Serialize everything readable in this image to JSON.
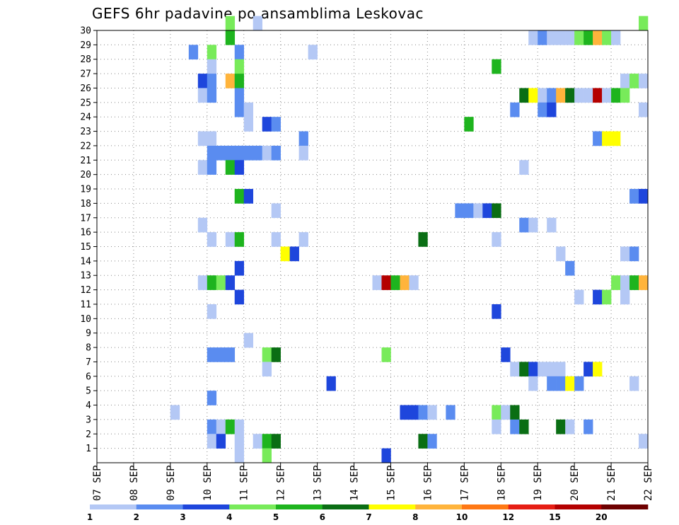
{
  "chart_data": {
    "type": "heatmap",
    "title": "GEFS 6hr padavine po ansamblima Leskovac",
    "xlabel": "",
    "ylabel": "",
    "x_categories": [
      "07 SEP",
      "08 SEP",
      "09 SEP",
      "10 SEP",
      "11 SEP",
      "12 SEP",
      "13 SEP",
      "14 SEP",
      "15 SEP",
      "16 SEP",
      "17 SEP",
      "18 SEP",
      "19 SEP",
      "20 SEP",
      "21 SEP",
      "22 SEP"
    ],
    "x_range_days": [
      0,
      15
    ],
    "steps_per_day": 4,
    "y_categories": [
      "1",
      "2",
      "3",
      "4",
      "5",
      "6",
      "7",
      "8",
      "9",
      "10",
      "11",
      "12",
      "13",
      "14",
      "15",
      "16",
      "17",
      "18",
      "19",
      "20",
      "21",
      "22",
      "23",
      "24",
      "25",
      "26",
      "27",
      "28",
      "29",
      "30"
    ],
    "y_range": [
      0,
      30
    ],
    "grid": true,
    "legend": {
      "position": "bottom",
      "levels": [
        "1",
        "2",
        "3",
        "4",
        "5",
        "6",
        "7",
        "8",
        "10",
        "12",
        "15",
        "20"
      ],
      "colors": [
        "#b4c8f5",
        "#5a8cf0",
        "#1e46dc",
        "#78eb5a",
        "#1eb41e",
        "#0a6e14",
        "#ffff00",
        "#ffb43c",
        "#ff7814",
        "#e61e14",
        "#b40000",
        "#6e0000"
      ]
    },
    "cells": [
      [
        30,
        14,
        4
      ],
      [
        30,
        17,
        1
      ],
      [
        30,
        59,
        4
      ],
      [
        29,
        14,
        5
      ],
      [
        29,
        47,
        1
      ],
      [
        29,
        48,
        2
      ],
      [
        29,
        49,
        1
      ],
      [
        29,
        50,
        1
      ],
      [
        29,
        51,
        1
      ],
      [
        29,
        52,
        4
      ],
      [
        29,
        53,
        5
      ],
      [
        29,
        54,
        8
      ],
      [
        29,
        55,
        4
      ],
      [
        29,
        56,
        1
      ],
      [
        28,
        10,
        2
      ],
      [
        28,
        12,
        4
      ],
      [
        28,
        15,
        2
      ],
      [
        28,
        23,
        1
      ],
      [
        27,
        12,
        1
      ],
      [
        27,
        15,
        4
      ],
      [
        27,
        43,
        5
      ],
      [
        26,
        11,
        3
      ],
      [
        26,
        12,
        2
      ],
      [
        26,
        14,
        8
      ],
      [
        26,
        15,
        5
      ],
      [
        26,
        57,
        1
      ],
      [
        26,
        58,
        4
      ],
      [
        26,
        59,
        1
      ],
      [
        25,
        11,
        1
      ],
      [
        25,
        12,
        2
      ],
      [
        25,
        15,
        2
      ],
      [
        25,
        46,
        6
      ],
      [
        25,
        47,
        7
      ],
      [
        25,
        48,
        1
      ],
      [
        25,
        49,
        2
      ],
      [
        25,
        50,
        8
      ],
      [
        25,
        51,
        6
      ],
      [
        25,
        52,
        1
      ],
      [
        25,
        53,
        1
      ],
      [
        25,
        54,
        11
      ],
      [
        25,
        55,
        1
      ],
      [
        25,
        56,
        5
      ],
      [
        25,
        57,
        4
      ],
      [
        24,
        15,
        2
      ],
      [
        24,
        16,
        1
      ],
      [
        24,
        45,
        2
      ],
      [
        24,
        48,
        2
      ],
      [
        24,
        49,
        3
      ],
      [
        24,
        59,
        1
      ],
      [
        23,
        16,
        1
      ],
      [
        23,
        18,
        3
      ],
      [
        23,
        19,
        2
      ],
      [
        23,
        40,
        5
      ],
      [
        22,
        11,
        1
      ],
      [
        22,
        12,
        1
      ],
      [
        22,
        22,
        2
      ],
      [
        22,
        54,
        2
      ],
      [
        22,
        55,
        7
      ],
      [
        22,
        56,
        7
      ],
      [
        21,
        12,
        2
      ],
      [
        21,
        13,
        2
      ],
      [
        21,
        14,
        2
      ],
      [
        21,
        15,
        2
      ],
      [
        21,
        16,
        2
      ],
      [
        21,
        17,
        2
      ],
      [
        21,
        18,
        1
      ],
      [
        21,
        19,
        2
      ],
      [
        21,
        22,
        1
      ],
      [
        20,
        11,
        1
      ],
      [
        20,
        12,
        2
      ],
      [
        20,
        14,
        5
      ],
      [
        20,
        15,
        3
      ],
      [
        20,
        46,
        1
      ],
      [
        18,
        15,
        5
      ],
      [
        18,
        16,
        3
      ],
      [
        18,
        58,
        2
      ],
      [
        18,
        59,
        3
      ],
      [
        17,
        19,
        1
      ],
      [
        17,
        39,
        2
      ],
      [
        17,
        40,
        2
      ],
      [
        17,
        41,
        1
      ],
      [
        17,
        42,
        3
      ],
      [
        17,
        43,
        6
      ],
      [
        16,
        11,
        1
      ],
      [
        16,
        46,
        2
      ],
      [
        16,
        47,
        1
      ],
      [
        16,
        49,
        1
      ],
      [
        15,
        12,
        1
      ],
      [
        15,
        14,
        1
      ],
      [
        15,
        15,
        5
      ],
      [
        15,
        19,
        1
      ],
      [
        15,
        22,
        1
      ],
      [
        15,
        35,
        6
      ],
      [
        15,
        43,
        1
      ],
      [
        14,
        20,
        7
      ],
      [
        14,
        21,
        3
      ],
      [
        14,
        50,
        1
      ],
      [
        14,
        57,
        1
      ],
      [
        14,
        58,
        2
      ],
      [
        13,
        15,
        3
      ],
      [
        13,
        51,
        2
      ],
      [
        12,
        11,
        1
      ],
      [
        12,
        12,
        5
      ],
      [
        12,
        13,
        4
      ],
      [
        12,
        14,
        3
      ],
      [
        12,
        30,
        1
      ],
      [
        12,
        31,
        11
      ],
      [
        12,
        32,
        5
      ],
      [
        12,
        33,
        8
      ],
      [
        12,
        34,
        1
      ],
      [
        12,
        56,
        4
      ],
      [
        12,
        57,
        1
      ],
      [
        12,
        58,
        5
      ],
      [
        12,
        59,
        8
      ],
      [
        11,
        15,
        3
      ],
      [
        11,
        52,
        1
      ],
      [
        11,
        54,
        3
      ],
      [
        11,
        55,
        4
      ],
      [
        11,
        57,
        1
      ],
      [
        10,
        12,
        1
      ],
      [
        10,
        43,
        3
      ],
      [
        8,
        16,
        1
      ],
      [
        7,
        12,
        2
      ],
      [
        7,
        13,
        2
      ],
      [
        7,
        14,
        2
      ],
      [
        7,
        18,
        4
      ],
      [
        7,
        19,
        6
      ],
      [
        7,
        31,
        4
      ],
      [
        7,
        44,
        3
      ],
      [
        6,
        18,
        1
      ],
      [
        6,
        45,
        1
      ],
      [
        6,
        46,
        6
      ],
      [
        6,
        47,
        3
      ],
      [
        6,
        48,
        1
      ],
      [
        6,
        49,
        1
      ],
      [
        6,
        50,
        1
      ],
      [
        6,
        53,
        3
      ],
      [
        6,
        54,
        7
      ],
      [
        5,
        25,
        3
      ],
      [
        5,
        47,
        1
      ],
      [
        5,
        49,
        2
      ],
      [
        5,
        50,
        2
      ],
      [
        5,
        51,
        7
      ],
      [
        5,
        52,
        2
      ],
      [
        5,
        58,
        1
      ],
      [
        4,
        12,
        2
      ],
      [
        3,
        8,
        1
      ],
      [
        3,
        33,
        3
      ],
      [
        3,
        34,
        3
      ],
      [
        3,
        35,
        2
      ],
      [
        3,
        36,
        1
      ],
      [
        3,
        38,
        2
      ],
      [
        3,
        43,
        4
      ],
      [
        3,
        44,
        1
      ],
      [
        3,
        45,
        6
      ],
      [
        2,
        12,
        2
      ],
      [
        2,
        13,
        1
      ],
      [
        2,
        14,
        5
      ],
      [
        2,
        15,
        1
      ],
      [
        2,
        43,
        1
      ],
      [
        2,
        45,
        2
      ],
      [
        2,
        46,
        6
      ],
      [
        2,
        50,
        6
      ],
      [
        2,
        51,
        1
      ],
      [
        2,
        53,
        2
      ],
      [
        1,
        12,
        1
      ],
      [
        1,
        13,
        3
      ],
      [
        1,
        15,
        1
      ],
      [
        1,
        17,
        1
      ],
      [
        1,
        18,
        5
      ],
      [
        1,
        19,
        6
      ],
      [
        1,
        35,
        6
      ],
      [
        1,
        36,
        2
      ],
      [
        1,
        59,
        1
      ],
      [
        0,
        15,
        1
      ],
      [
        0,
        18,
        4
      ],
      [
        0,
        31,
        3
      ]
    ]
  }
}
